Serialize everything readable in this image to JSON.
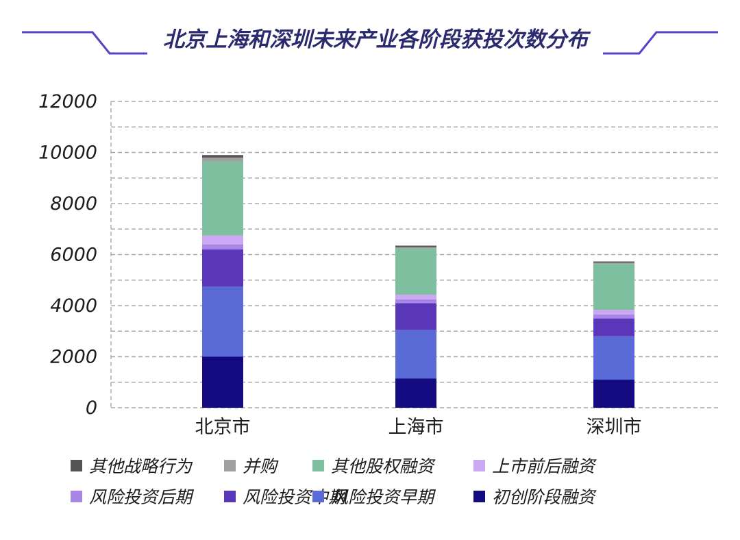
{
  "chart_data": {
    "type": "bar",
    "stacked": true,
    "title": "北京上海和深圳未来产业各阶段获投次数分布",
    "categories": [
      "北京市",
      "上海市",
      "深圳市"
    ],
    "ylim": [
      0,
      12000
    ],
    "yticks": [
      0,
      2000,
      4000,
      6000,
      8000,
      10000,
      12000
    ],
    "yticks_labels": [
      "0",
      "2000",
      "4000",
      "6000",
      "8000",
      "10000",
      "12000"
    ],
    "grid": true,
    "legend_position": "bottom",
    "series": [
      {
        "name": "初创阶段融资",
        "color": "#140a82",
        "values": [
          2000,
          1150,
          1100
        ]
      },
      {
        "name": "风险投资早期",
        "color": "#5a6ad6",
        "values": [
          2750,
          1900,
          1700
        ]
      },
      {
        "name": "风险投资中期",
        "color": "#5a36b8",
        "values": [
          1450,
          1050,
          700
        ]
      },
      {
        "name": "风险投资后期",
        "color": "#a886e6",
        "values": [
          200,
          150,
          150
        ]
      },
      {
        "name": "上市前后融资",
        "color": "#cba8f4",
        "values": [
          350,
          180,
          180
        ]
      },
      {
        "name": "其他股权融资",
        "color": "#7ebf9f",
        "values": [
          2900,
          1800,
          1800
        ]
      },
      {
        "name": "并购",
        "color": "#a0a0a0",
        "values": [
          150,
          60,
          50
        ]
      },
      {
        "name": "其他战略行为",
        "color": "#555555",
        "values": [
          100,
          60,
          50
        ]
      }
    ],
    "legend_order": [
      "其他战略行为",
      "并购",
      "其他股权融资",
      "上市前后融资",
      "风险投资后期",
      "风险投资中期",
      "风险投资早期",
      "初创阶段融资"
    ]
  },
  "colors": {
    "title": "#2b2a6e",
    "title_frame": "#5b3fc4",
    "grid": "#a8a8a8",
    "axis_text": "#1c1c1c"
  }
}
